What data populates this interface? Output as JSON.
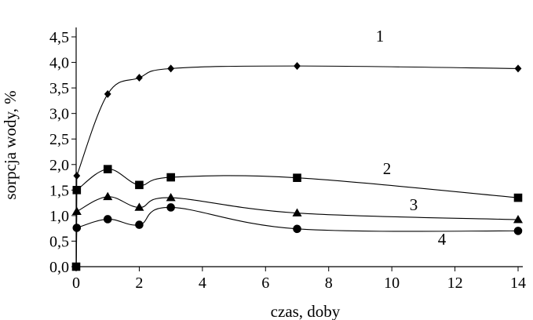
{
  "chart_data": {
    "type": "line",
    "title": "",
    "xlabel": "czas, doby",
    "ylabel": "sorpcja wody, %",
    "xlim": [
      0,
      14
    ],
    "ylim": [
      0,
      4.5
    ],
    "x_ticks": [
      {
        "value": 0,
        "label": "0"
      },
      {
        "value": 2,
        "label": "2"
      },
      {
        "value": 4,
        "label": "4"
      },
      {
        "value": 6,
        "label": "6"
      },
      {
        "value": 8,
        "label": "8"
      },
      {
        "value": 10,
        "label": "10"
      },
      {
        "value": 12,
        "label": "12"
      },
      {
        "value": 14,
        "label": "14"
      }
    ],
    "y_ticks": [
      {
        "value": 0,
        "label": "0,0"
      },
      {
        "value": 0.5,
        "label": "0,5"
      },
      {
        "value": 1.0,
        "label": "1,0"
      },
      {
        "value": 1.5,
        "label": "1,5"
      },
      {
        "value": 2.0,
        "label": "2,0"
      },
      {
        "value": 2.5,
        "label": "2,5"
      },
      {
        "value": 3.0,
        "label": "3,0"
      },
      {
        "value": 3.5,
        "label": "3,5"
      },
      {
        "value": 4.0,
        "label": "4,0"
      },
      {
        "value": 4.5,
        "label": "4,5"
      }
    ],
    "grid": false,
    "legend": "none",
    "series": [
      {
        "label": "1",
        "marker": "diamond",
        "x": [
          0,
          0.02,
          1,
          2,
          3,
          7,
          14
        ],
        "y": [
          0,
          1.78,
          3.38,
          3.7,
          3.88,
          3.93,
          3.88
        ]
      },
      {
        "label": "2",
        "marker": "square",
        "x": [
          0,
          0.02,
          1,
          2,
          3,
          7,
          14
        ],
        "y": [
          0,
          1.5,
          1.91,
          1.6,
          1.75,
          1.74,
          1.35
        ]
      },
      {
        "label": "3",
        "marker": "triangle",
        "x": [
          0,
          0.02,
          1,
          2,
          3,
          7,
          14
        ],
        "y": [
          0,
          1.08,
          1.37,
          1.16,
          1.35,
          1.05,
          0.92
        ]
      },
      {
        "label": "4",
        "marker": "circle",
        "x": [
          0,
          0.02,
          1,
          2,
          3,
          7,
          14
        ],
        "y": [
          0,
          0.76,
          0.93,
          0.82,
          1.16,
          0.74,
          0.7
        ]
      }
    ]
  }
}
